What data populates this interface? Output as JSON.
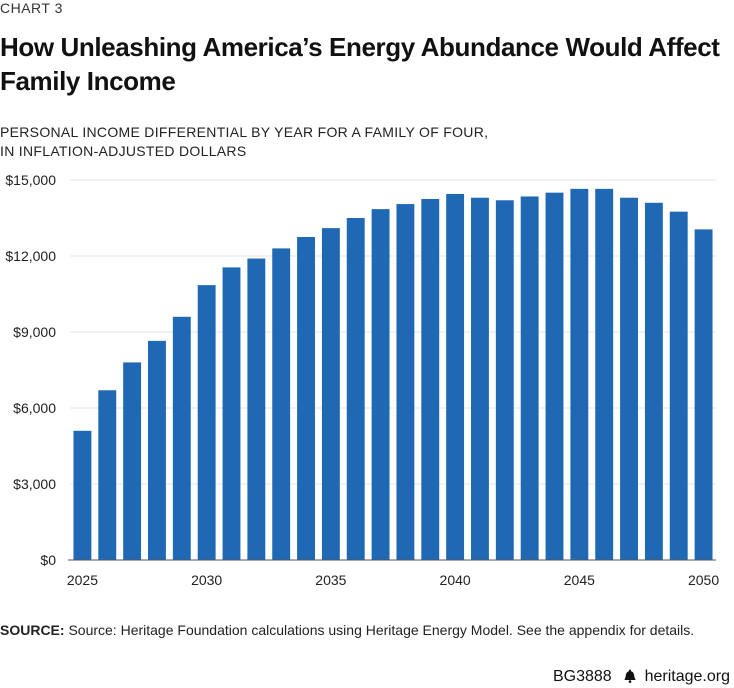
{
  "chart_label": "CHART 3",
  "title": "How Unleashing America’s Energy Abundance Would Affect Family Income",
  "subtitle_line1": "PERSONAL INCOME DIFFERENTIAL BY YEAR FOR A FAMILY OF FOUR,",
  "subtitle_line2": "IN INFLATION-ADJUSTED DOLLARS",
  "source_label": "SOURCE:",
  "source_text": "Source: Heritage Foundation calculations using Heritage Energy Model. See the appendix for details.",
  "report_id": "BG3888",
  "site": "heritage.org",
  "colors": {
    "bar": "#1f68b3",
    "grid": "#e6e6e6",
    "axis": "#555555"
  },
  "chart_data": {
    "type": "bar",
    "title": "How Unleashing America’s Energy Abundance Would Affect Family Income",
    "ylabel": "Personal income differential, inflation-adjusted dollars",
    "xlabel": "",
    "ylim": [
      0,
      15000
    ],
    "yticks": [
      0,
      3000,
      6000,
      9000,
      12000,
      15000
    ],
    "ytick_labels": [
      "$0",
      "$3,000",
      "$6,000",
      "$9,000",
      "$12,000",
      "$15,000"
    ],
    "categories": [
      2025,
      2026,
      2027,
      2028,
      2029,
      2030,
      2031,
      2032,
      2033,
      2034,
      2035,
      2036,
      2037,
      2038,
      2039,
      2040,
      2041,
      2042,
      2043,
      2044,
      2045,
      2046,
      2047,
      2048,
      2049,
      2050
    ],
    "xtick_labels": [
      "2025",
      "2030",
      "2035",
      "2040",
      "2045",
      "2050"
    ],
    "values": [
      5100,
      6700,
      7800,
      8650,
      9600,
      10850,
      11550,
      11900,
      12300,
      12750,
      13100,
      13500,
      13850,
      14050,
      14250,
      14450,
      14300,
      14200,
      14350,
      14500,
      14650,
      14650,
      14300,
      14100,
      13750,
      13050
    ],
    "grid": true
  }
}
